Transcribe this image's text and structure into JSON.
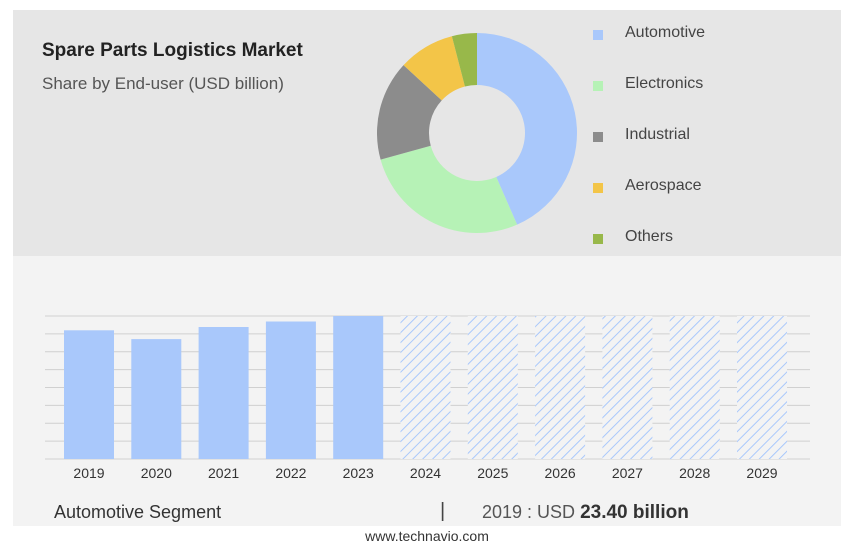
{
  "header": {
    "title": "Spare Parts Logistics Market",
    "subtitle": "Share by End-user (USD billion)"
  },
  "chart_data": [
    {
      "type": "pie",
      "donut": true,
      "labels": [
        "Automotive",
        "Electronics",
        "Industrial",
        "Aerospace",
        "Others"
      ],
      "values": [
        43,
        27,
        16,
        9,
        4
      ],
      "colors": [
        "#a9c8fb",
        "#b6f2b6",
        "#8c8c8c",
        "#f3c548",
        "#98b84a"
      ],
      "legend": "right"
    },
    {
      "type": "bar",
      "categories": [
        "2019",
        "2020",
        "2021",
        "2022",
        "2023",
        "2024",
        "2025",
        "2026",
        "2027",
        "2028",
        "2029"
      ],
      "values": [
        23.4,
        21.8,
        24.0,
        25.0,
        26.0,
        null,
        null,
        null,
        null,
        null,
        null
      ],
      "forecast": [
        false,
        false,
        false,
        false,
        false,
        true,
        true,
        true,
        true,
        true,
        true
      ],
      "ylim": [
        0,
        26
      ],
      "grid": true,
      "colors": {
        "bar": "#a9c8fb",
        "forecast": "#a9c8fb"
      }
    }
  ],
  "footer": {
    "segment": "Automotive Segment",
    "separator": "|",
    "stat_prefix": "2019 : USD ",
    "stat_value": "23.40 billion",
    "site": "www.technavio.com"
  }
}
